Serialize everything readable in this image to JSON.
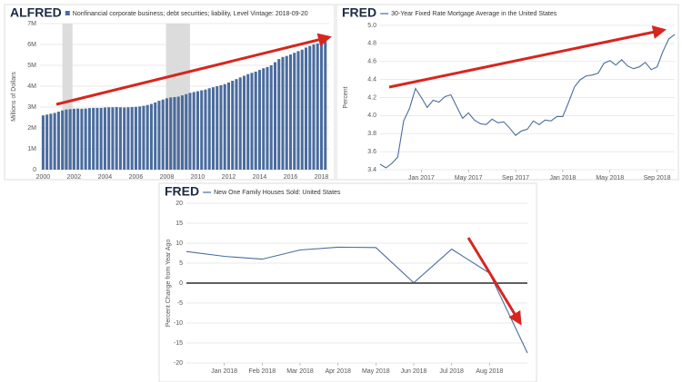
{
  "chart_data": [
    {
      "type": "bar",
      "logo": "ALFRED",
      "title": "Nonfinancial corporate business; debt securities; liability, Level Vintage: 2018-09-20",
      "y_label": "Millions of Dollars",
      "color": "#4a6c9e",
      "grid": true,
      "shaded_periods": [
        [
          2001.25,
          2001.9
        ],
        [
          2007.95,
          2009.5
        ]
      ],
      "x": [
        2000,
        2000.25,
        2000.5,
        2000.75,
        2001,
        2001.25,
        2001.5,
        2001.75,
        2002,
        2002.25,
        2002.5,
        2002.75,
        2003,
        2003.25,
        2003.5,
        2003.75,
        2004,
        2004.25,
        2004.5,
        2004.75,
        2005,
        2005.25,
        2005.5,
        2005.75,
        2006,
        2006.25,
        2006.5,
        2006.75,
        2007,
        2007.25,
        2007.5,
        2007.75,
        2008,
        2008.25,
        2008.5,
        2008.75,
        2009,
        2009.25,
        2009.5,
        2009.75,
        2010,
        2010.25,
        2010.5,
        2010.75,
        2011,
        2011.25,
        2011.5,
        2011.75,
        2012,
        2012.25,
        2012.5,
        2012.75,
        2013,
        2013.25,
        2013.5,
        2013.75,
        2014,
        2014.25,
        2014.5,
        2014.75,
        2015,
        2015.25,
        2015.5,
        2015.75,
        2016,
        2016.25,
        2016.5,
        2016.75,
        2017,
        2017.25,
        2017.5,
        2017.75,
        2018,
        2018.25
      ],
      "values": [
        2600000,
        2640000,
        2680000,
        2720000,
        2780000,
        2840000,
        2880000,
        2900000,
        2920000,
        2930000,
        2920000,
        2930000,
        2950000,
        2960000,
        2960000,
        2960000,
        2980000,
        2990000,
        2990000,
        3000000,
        2990000,
        2980000,
        2990000,
        3000000,
        3010000,
        3030000,
        3060000,
        3100000,
        3150000,
        3220000,
        3300000,
        3360000,
        3420000,
        3460000,
        3480000,
        3500000,
        3560000,
        3620000,
        3680000,
        3720000,
        3760000,
        3800000,
        3840000,
        3900000,
        3950000,
        4000000,
        4050000,
        4100000,
        4180000,
        4260000,
        4340000,
        4420000,
        4500000,
        4580000,
        4640000,
        4700000,
        4780000,
        4860000,
        4920000,
        5000000,
        5150000,
        5300000,
        5400000,
        5450000,
        5520000,
        5600000,
        5680000,
        5750000,
        5850000,
        5930000,
        6000000,
        6050000,
        6150000,
        6200000
      ],
      "xlim": [
        1999.8,
        2018.5
      ],
      "xticks": [
        2000,
        2002,
        2004,
        2006,
        2008,
        2010,
        2012,
        2014,
        2016,
        2018
      ],
      "ylim": [
        0,
        7000000
      ],
      "yticks": [
        0,
        {
          "value": 1000000,
          "label": "1M"
        },
        {
          "value": 2000000,
          "label": "2M"
        },
        {
          "value": 3000000,
          "label": "3M"
        },
        {
          "value": 4000000,
          "label": "4M"
        },
        {
          "value": 5000000,
          "label": "5M"
        },
        {
          "value": 6000000,
          "label": "6M"
        },
        {
          "value": 7000000,
          "label": "7M"
        }
      ]
    },
    {
      "type": "line",
      "logo": "FRED",
      "grid": true,
      "y_label": "Percent",
      "categories": [
        null,
        null,
        null,
        null,
        null,
        null,
        null,
        "Jan 2017",
        null,
        null,
        null,
        null,
        null,
        null,
        null,
        "May 2017",
        null,
        null,
        null,
        null,
        null,
        null,
        null,
        "Sep 2017",
        null,
        null,
        null,
        null,
        null,
        null,
        null,
        "Jan 2018",
        null,
        null,
        null,
        null,
        null,
        null,
        null,
        "May 2018",
        null,
        null,
        null,
        null,
        null,
        null,
        null,
        "Sep 2018",
        null,
        null,
        null
      ],
      "series": [
        {
          "name": "30-Year Fixed Rate Mortgage Average in the United States",
          "color": "#4a6c9e",
          "values": [
            3.46,
            3.42,
            3.47,
            3.54,
            3.94,
            4.08,
            4.3,
            4.2,
            4.09,
            4.17,
            4.15,
            4.21,
            4.23,
            4.1,
            3.97,
            4.03,
            3.95,
            3.91,
            3.9,
            3.96,
            3.92,
            3.93,
            3.86,
            3.78,
            3.83,
            3.85,
            3.94,
            3.9,
            3.95,
            3.94,
            3.99,
            3.99,
            4.15,
            4.32,
            4.4,
            4.44,
            4.45,
            4.47,
            4.58,
            4.61,
            4.56,
            4.62,
            4.55,
            4.52,
            4.54,
            4.59,
            4.51,
            4.54,
            4.71,
            4.85,
            4.9
          ]
        }
      ],
      "ylim": [
        3.4,
        5.0
      ],
      "yticks": [
        3.4,
        3.6,
        3.8,
        {
          "value": 4,
          "label": "4.0"
        },
        4.2,
        4.4,
        4.6,
        4.8,
        {
          "value": 5,
          "label": "5.0"
        }
      ]
    },
    {
      "type": "line",
      "logo": "FRED",
      "grid": true,
      "zero_line": true,
      "y_label": "Percent Change from Year Ago",
      "categories": [
        null,
        "Jan 2018",
        "Feb 2018",
        "Mar 2018",
        "Apr 2018",
        "May 2018",
        "Jun 2018",
        "Jul 2018",
        "Aug 2018",
        null
      ],
      "series": [
        {
          "name": "New One Family Houses Sold: United States",
          "color": "#4a6c9e",
          "values": [
            7.9,
            6.7,
            6.0,
            8.3,
            9.0,
            8.9,
            0.1,
            8.5,
            2.5,
            -17.5
          ]
        }
      ],
      "ylim": [
        -20,
        20
      ],
      "yticks": [
        -20,
        -15,
        -10,
        -5,
        0,
        5,
        10,
        15,
        20
      ]
    }
  ]
}
